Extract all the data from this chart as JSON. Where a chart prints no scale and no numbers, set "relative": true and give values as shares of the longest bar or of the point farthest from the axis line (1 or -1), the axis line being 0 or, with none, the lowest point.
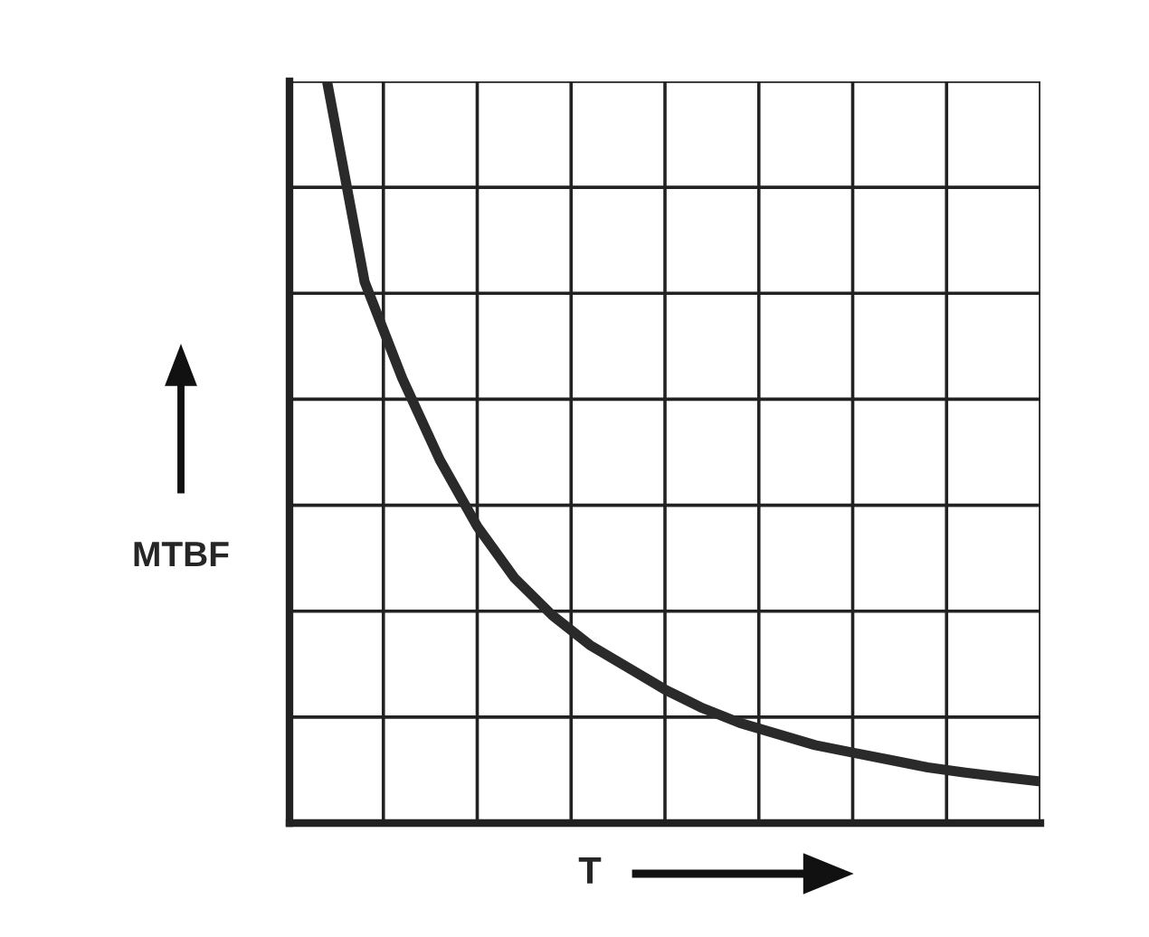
{
  "chart_data": {
    "type": "line",
    "relative": true,
    "xlabel": "T",
    "ylabel": "MTBF",
    "grid": true,
    "tick_labels": false,
    "marker": "none",
    "line_style": "solid",
    "categories": [
      null,
      null,
      null,
      null,
      null,
      null,
      null,
      null,
      null,
      null,
      null,
      null,
      null,
      null,
      null,
      null,
      null,
      null,
      null,
      null,
      null
    ],
    "series": [
      {
        "color": "#2a2a2a",
        "values": [
          null,
          1,
          0.73,
          0.6,
          0.49,
          0.4,
          0.33,
          0.28,
          0.24,
          0.21,
          0.18,
          0.155,
          0.135,
          0.12,
          0.105,
          0.095,
          0.085,
          0.075,
          0.068,
          0.062,
          0.056
        ]
      }
    ]
  }
}
